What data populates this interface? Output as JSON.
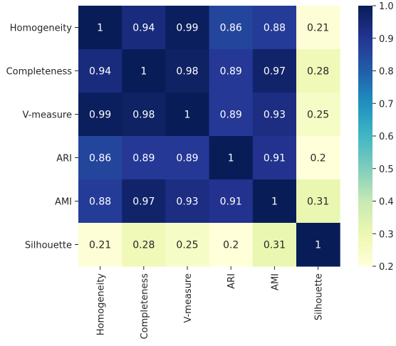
{
  "chart_data": {
    "type": "heatmap",
    "title": "",
    "xlabel": "",
    "ylabel": "",
    "rows": [
      "Homogeneity",
      "Completeness",
      "V-measure",
      "ARI",
      "AMI",
      "Silhouette"
    ],
    "columns": [
      "Homogeneity",
      "Completeness",
      "V-measure",
      "ARI",
      "AMI",
      "Silhouette"
    ],
    "values": [
      [
        1,
        0.94,
        0.99,
        0.86,
        0.88,
        0.21
      ],
      [
        0.94,
        1,
        0.98,
        0.89,
        0.97,
        0.28
      ],
      [
        0.99,
        0.98,
        1,
        0.89,
        0.93,
        0.25
      ],
      [
        0.86,
        0.89,
        0.89,
        1,
        0.91,
        0.2
      ],
      [
        0.88,
        0.97,
        0.93,
        0.91,
        1,
        0.31
      ],
      [
        0.21,
        0.28,
        0.25,
        0.2,
        0.31,
        1
      ]
    ],
    "annotations": true,
    "colormap": "YlGnBu",
    "colorbar": {
      "range": [
        0.2,
        1.0
      ],
      "ticks": [
        0.2,
        0.3,
        0.4,
        0.5,
        0.6,
        0.7,
        0.8,
        0.9,
        1.0
      ],
      "tick_labels": [
        "0.2",
        "0.3",
        "0.4",
        "0.5",
        "0.6",
        "0.7",
        "0.8",
        "0.9",
        "1.0"
      ],
      "placement": "right"
    },
    "grid": false
  }
}
